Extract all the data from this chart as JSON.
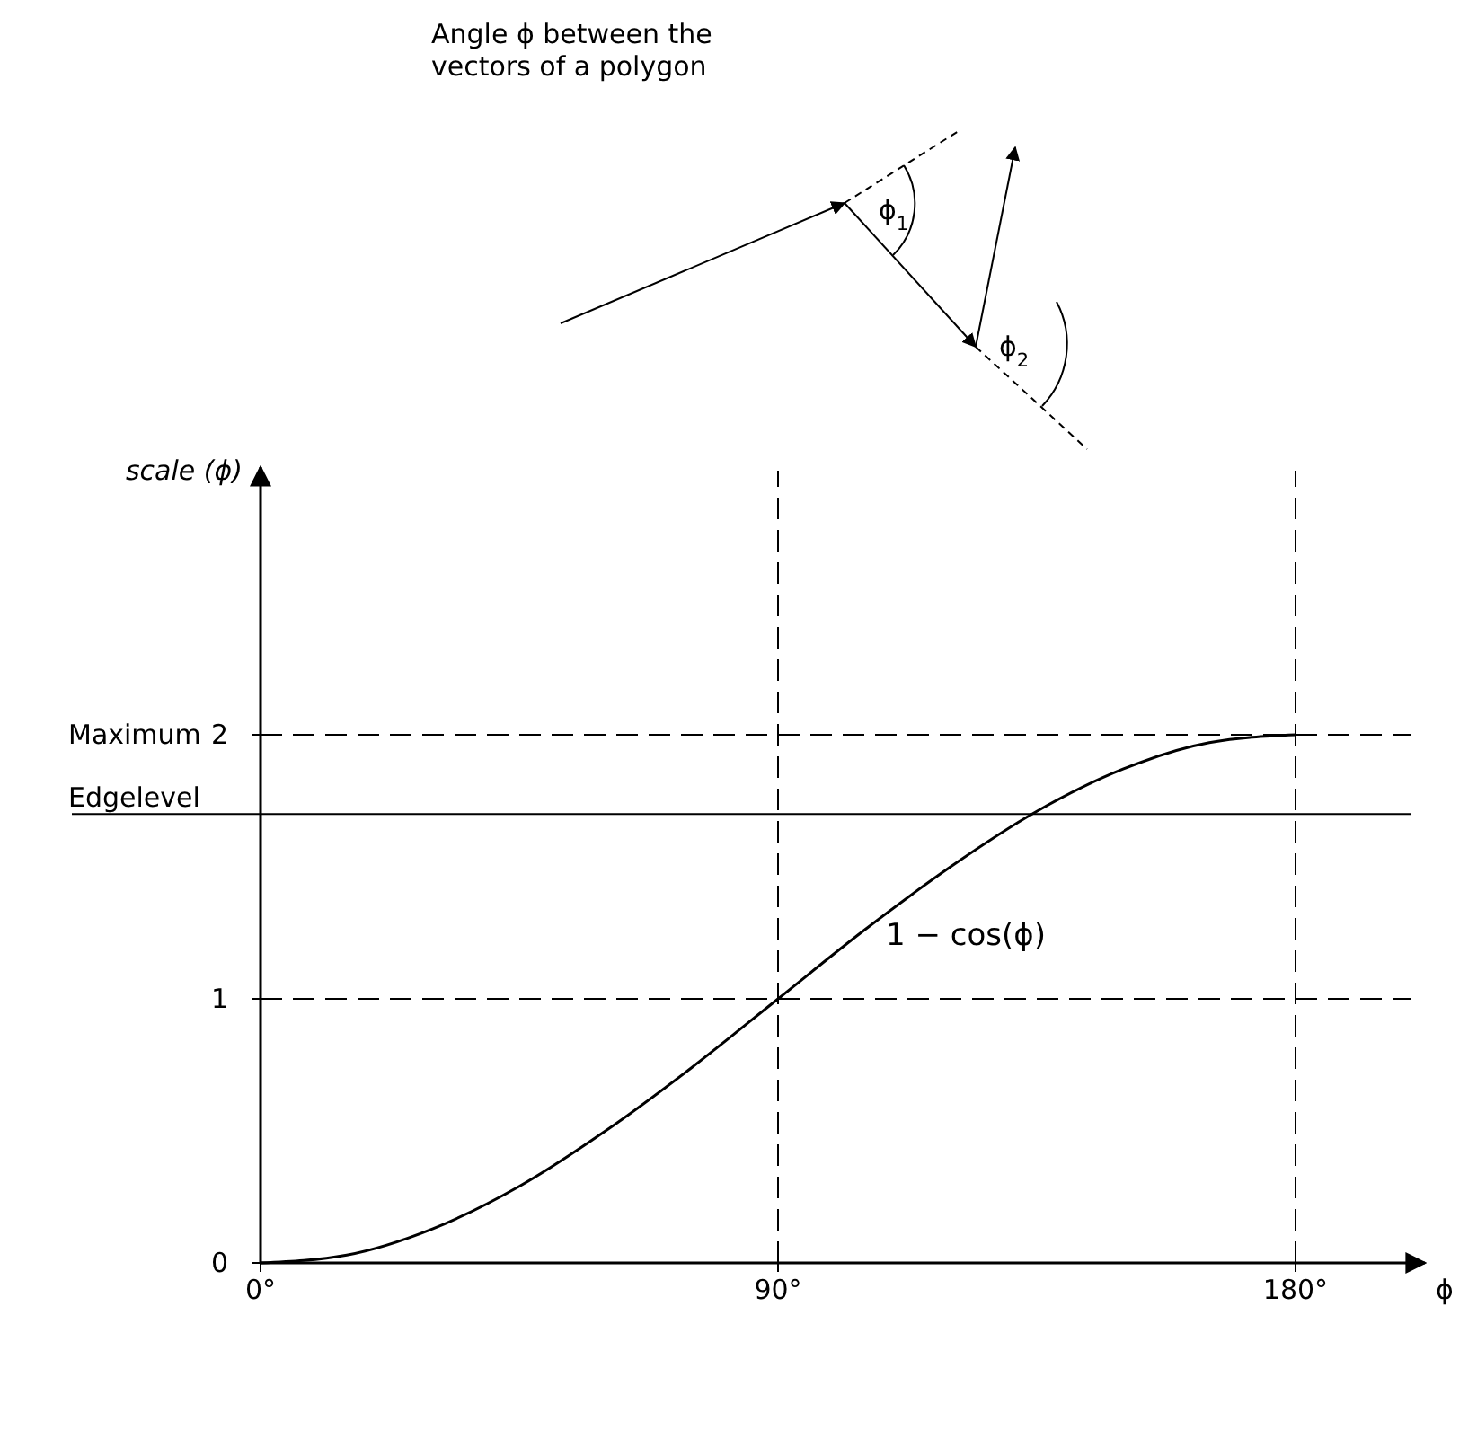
{
  "chart_data": {
    "type": "line",
    "xlabel": "ϕ",
    "ylabel": "scale (ϕ)",
    "x": [
      0,
      15,
      30,
      45,
      60,
      75,
      90,
      105,
      120,
      135,
      150,
      165,
      180
    ],
    "series": [
      {
        "name": "1 − cos(ϕ)",
        "color": "#000000",
        "values": [
          0,
          0.03,
          0.13,
          0.29,
          0.5,
          0.74,
          1,
          1.26,
          1.5,
          1.71,
          1.87,
          1.97,
          2
        ]
      }
    ],
    "xlim": [
      0,
      200
    ],
    "ylim": [
      0,
      3
    ],
    "xticks": [
      {
        "value": 0,
        "label": "0°"
      },
      {
        "value": 90,
        "label": "90°"
      },
      {
        "value": 180,
        "label": "180°"
      }
    ],
    "yticks": [
      0,
      1,
      2
    ],
    "ref_lines": [
      {
        "axis": "y",
        "value": 2,
        "label": "Maximum",
        "line_style": "dashed"
      },
      {
        "axis": "y",
        "value": 1.7,
        "label": "Edgelevel",
        "line_style": "solid"
      },
      {
        "axis": "y",
        "value": 1,
        "label": null,
        "line_style": "dashed"
      },
      {
        "axis": "x",
        "value": 90,
        "label": null,
        "line_style": "dashed"
      },
      {
        "axis": "x",
        "value": 180,
        "label": null,
        "line_style": "dashed"
      }
    ],
    "annotations": [
      "Angle ϕ between the vectors of a polygon",
      "ϕ$_{1}$",
      "ϕ$_{2}$"
    ],
    "grid": false,
    "legend": false,
    "marker": "none",
    "line_style": "solid"
  }
}
